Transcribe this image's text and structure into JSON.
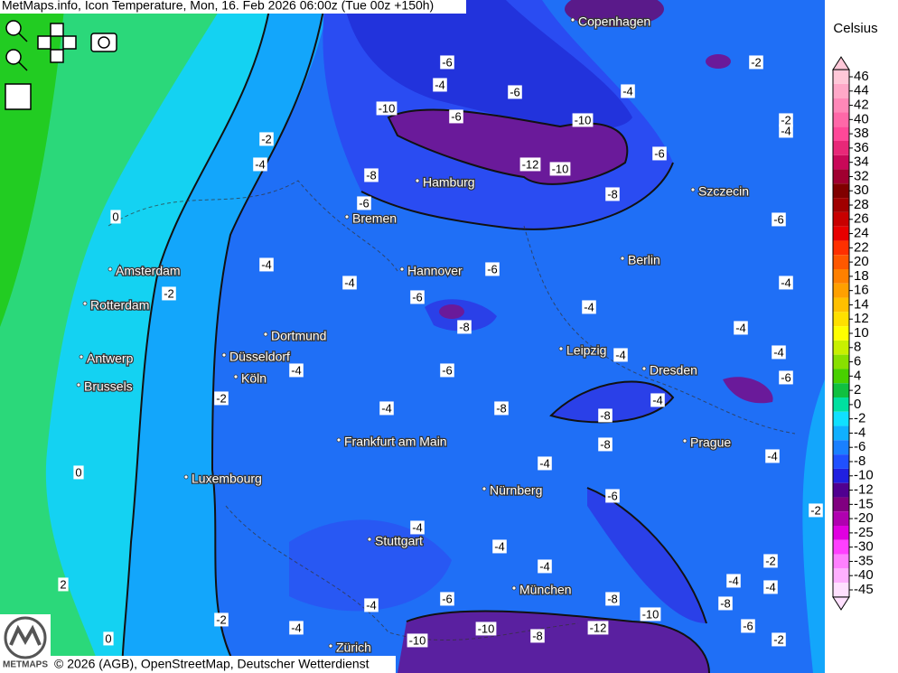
{
  "header": {
    "title": "MetMaps.info, Icon Temperature, Mon, 16. Feb 2026 06:00z (Tue 00z +150h)"
  },
  "cities": [
    "Copenhagen",
    "Hamburg",
    "Szczecin",
    "Bremen",
    "Amsterdam",
    "Hannover",
    "Berlin",
    "Rotterdam",
    "Dortmund",
    "Leipzig",
    "Antwerp",
    "Düsseldorf",
    "Dresden",
    "Brussels",
    "Köln",
    "Frankfurt am Main",
    "Prague",
    "Luxembourg",
    "Nürnberg",
    "Stuttgart",
    "München",
    "Zürich"
  ],
  "contour_labels": [
    -6,
    -4,
    -6,
    -4,
    -2,
    -10,
    -6,
    -10,
    -2,
    -4,
    -2,
    -4,
    -8,
    -12,
    -10,
    -6,
    -8,
    -6,
    0,
    -6,
    -6,
    -4,
    -2,
    -4,
    -6,
    -4,
    -4,
    -8,
    -4,
    -4,
    -4,
    -4,
    -6,
    -6,
    -2,
    -4,
    -4,
    -8,
    -8,
    -8,
    -4,
    -4,
    0,
    -6,
    -2,
    -4,
    -4,
    -4,
    -2,
    -4,
    -4,
    2,
    -4,
    -6,
    -8,
    -8,
    -10,
    -6,
    -2,
    -10,
    -12,
    -4,
    0,
    -8,
    -10,
    -2
  ],
  "legend": {
    "title": "Celsius",
    "ticks": [
      46,
      44,
      42,
      40,
      38,
      36,
      34,
      32,
      30,
      28,
      26,
      24,
      22,
      20,
      18,
      16,
      14,
      12,
      10,
      8,
      6,
      4,
      2,
      0,
      -2,
      -4,
      -6,
      -8,
      -10,
      -12,
      -15,
      -20,
      -25,
      -30,
      -35,
      -40,
      -45
    ],
    "colors": [
      "#ffc8d8",
      "#ffa8c8",
      "#ff88b8",
      "#ff68a8",
      "#ff4898",
      "#e82878",
      "#c80858",
      "#a00030",
      "#800000",
      "#a00000",
      "#c80000",
      "#e80000",
      "#ff3000",
      "#ff5800",
      "#ff8000",
      "#ffa000",
      "#ffc000",
      "#ffe000",
      "#ffff00",
      "#c8f000",
      "#88e000",
      "#48d000",
      "#10c040",
      "#00e0a0",
      "#10e0ff",
      "#10b0ff",
      "#1a80ff",
      "#2050ff",
      "#2020e0",
      "#500090",
      "#800080",
      "#b000b0",
      "#e000e0",
      "#ff40ff",
      "#ff80ff",
      "#ffb0ff",
      "#ffe0ff"
    ]
  },
  "logo": {
    "text": "METMAPS"
  },
  "attribution": "© 2026 (AGB), OpenStreetMap, Deutscher Wetterdienst"
}
